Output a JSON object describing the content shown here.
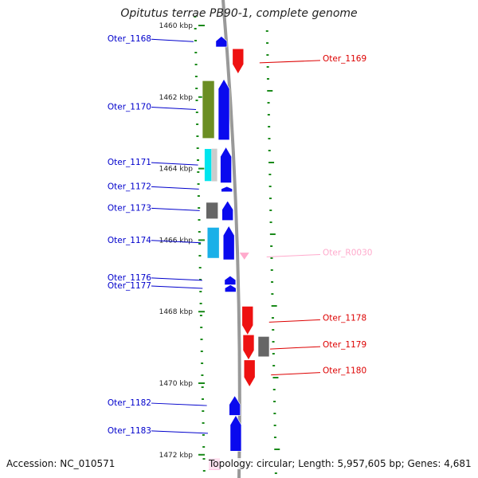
{
  "title": "Opitutus terrae PB90-1, complete genome",
  "accession": "Accession: NC_010571",
  "summary": "Topology: circular; Length: 5,957,605 bp; Genes: 4,681",
  "colors": {
    "minus_label": "#0000cc",
    "plus_label": "#dd0000",
    "rna_label": "#ffaacc",
    "ruler_tick": "#1a8a1a",
    "backbone": "#999999",
    "blue_arrow": "#0a0aee",
    "red_arrow": "#ee1111",
    "olive": "#6b8e23",
    "cyan": "#00e5ee",
    "light_blue": "#1ab0e8",
    "gray_gene": "#666666",
    "silver_gene": "#cccccc",
    "pink_gene": "#ff3399"
  },
  "scale_marks": [
    {
      "label": "1460 kbp",
      "pos": 1460
    },
    {
      "label": "1462 kbp",
      "pos": 1462
    },
    {
      "label": "1464 kbp",
      "pos": 1464
    },
    {
      "label": "1466 kbp",
      "pos": 1466
    },
    {
      "label": "1468 kbp",
      "pos": 1468
    },
    {
      "label": "1470 kbp",
      "pos": 1470
    },
    {
      "label": "1472 kbp",
      "pos": 1472
    }
  ],
  "minus_genes": [
    {
      "label": "Oter_1168",
      "start": 1460.3,
      "end": 1460.6,
      "color": "blue_arrow"
    },
    {
      "label": "Oter_1170",
      "start": 1461.5,
      "end": 1463.2,
      "color": "blue_arrow",
      "bar": "olive"
    },
    {
      "label": "Oter_1171",
      "start": 1463.4,
      "end": 1464.4,
      "color": "blue_arrow",
      "bar": "cyan",
      "bar2": "silver_gene"
    },
    {
      "label": "Oter_1172",
      "start": 1464.5,
      "end": 1464.65,
      "color": "blue_arrow"
    },
    {
      "label": "Oter_1173",
      "start": 1464.9,
      "end": 1465.45,
      "color": "blue_arrow",
      "bar": "gray_gene"
    },
    {
      "label": "Oter_1174",
      "start": 1465.6,
      "end": 1466.55,
      "color": "blue_arrow",
      "bar": "light_blue"
    },
    {
      "label": "Oter_1176",
      "start": 1467.0,
      "end": 1467.25,
      "color": "blue_arrow"
    },
    {
      "label": "Oter_1177",
      "start": 1467.25,
      "end": 1467.45,
      "color": "blue_arrow"
    },
    {
      "label": "Oter_1182",
      "start": 1470.35,
      "end": 1470.9,
      "color": "blue_arrow"
    },
    {
      "label": "Oter_1183",
      "start": 1470.9,
      "end": 1471.9,
      "color": "blue_arrow"
    }
  ],
  "plus_genes": [
    {
      "label": "Oter_1169",
      "start": 1460.65,
      "end": 1461.35,
      "color": "red_arrow"
    },
    {
      "label": "Oter_R0030",
      "start": 1466.35,
      "end": 1466.5,
      "color": "rna_label",
      "rna": true
    },
    {
      "label": "Oter_1178",
      "start": 1467.85,
      "end": 1468.65,
      "color": "red_arrow"
    },
    {
      "label": "Oter_1179",
      "start": 1468.65,
      "end": 1469.35,
      "color": "red_arrow",
      "bar": "gray_gene"
    },
    {
      "label": "Oter_1180",
      "start": 1469.35,
      "end": 1470.1,
      "color": "red_arrow"
    }
  ]
}
